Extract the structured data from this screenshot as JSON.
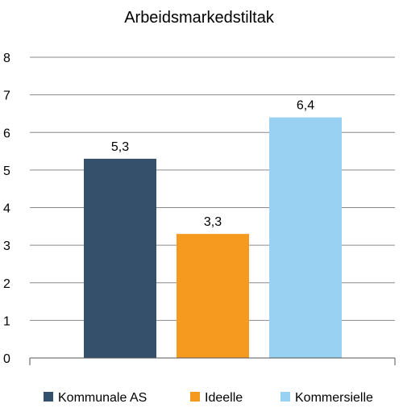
{
  "chart_data": {
    "type": "bar",
    "title": "Arbeidsmarkedstiltak",
    "categories": [
      "Kommunale AS",
      "Ideelle",
      "Kommersielle"
    ],
    "values": [
      5.3,
      3.3,
      6.4
    ],
    "value_labels": [
      "5,3",
      "3,3",
      "6,4"
    ],
    "colors": [
      "#34506a",
      "#f59a1f",
      "#98d1f1"
    ],
    "ylim": [
      0,
      8
    ],
    "yticks": [
      "0",
      "1",
      "2",
      "3",
      "4",
      "5",
      "6",
      "7",
      "8"
    ],
    "grid": true,
    "legend": {
      "placement": "bottom",
      "entries": [
        "Kommunale AS",
        "Ideelle",
        "Kommersielle"
      ]
    },
    "xlabel": "",
    "ylabel": ""
  }
}
